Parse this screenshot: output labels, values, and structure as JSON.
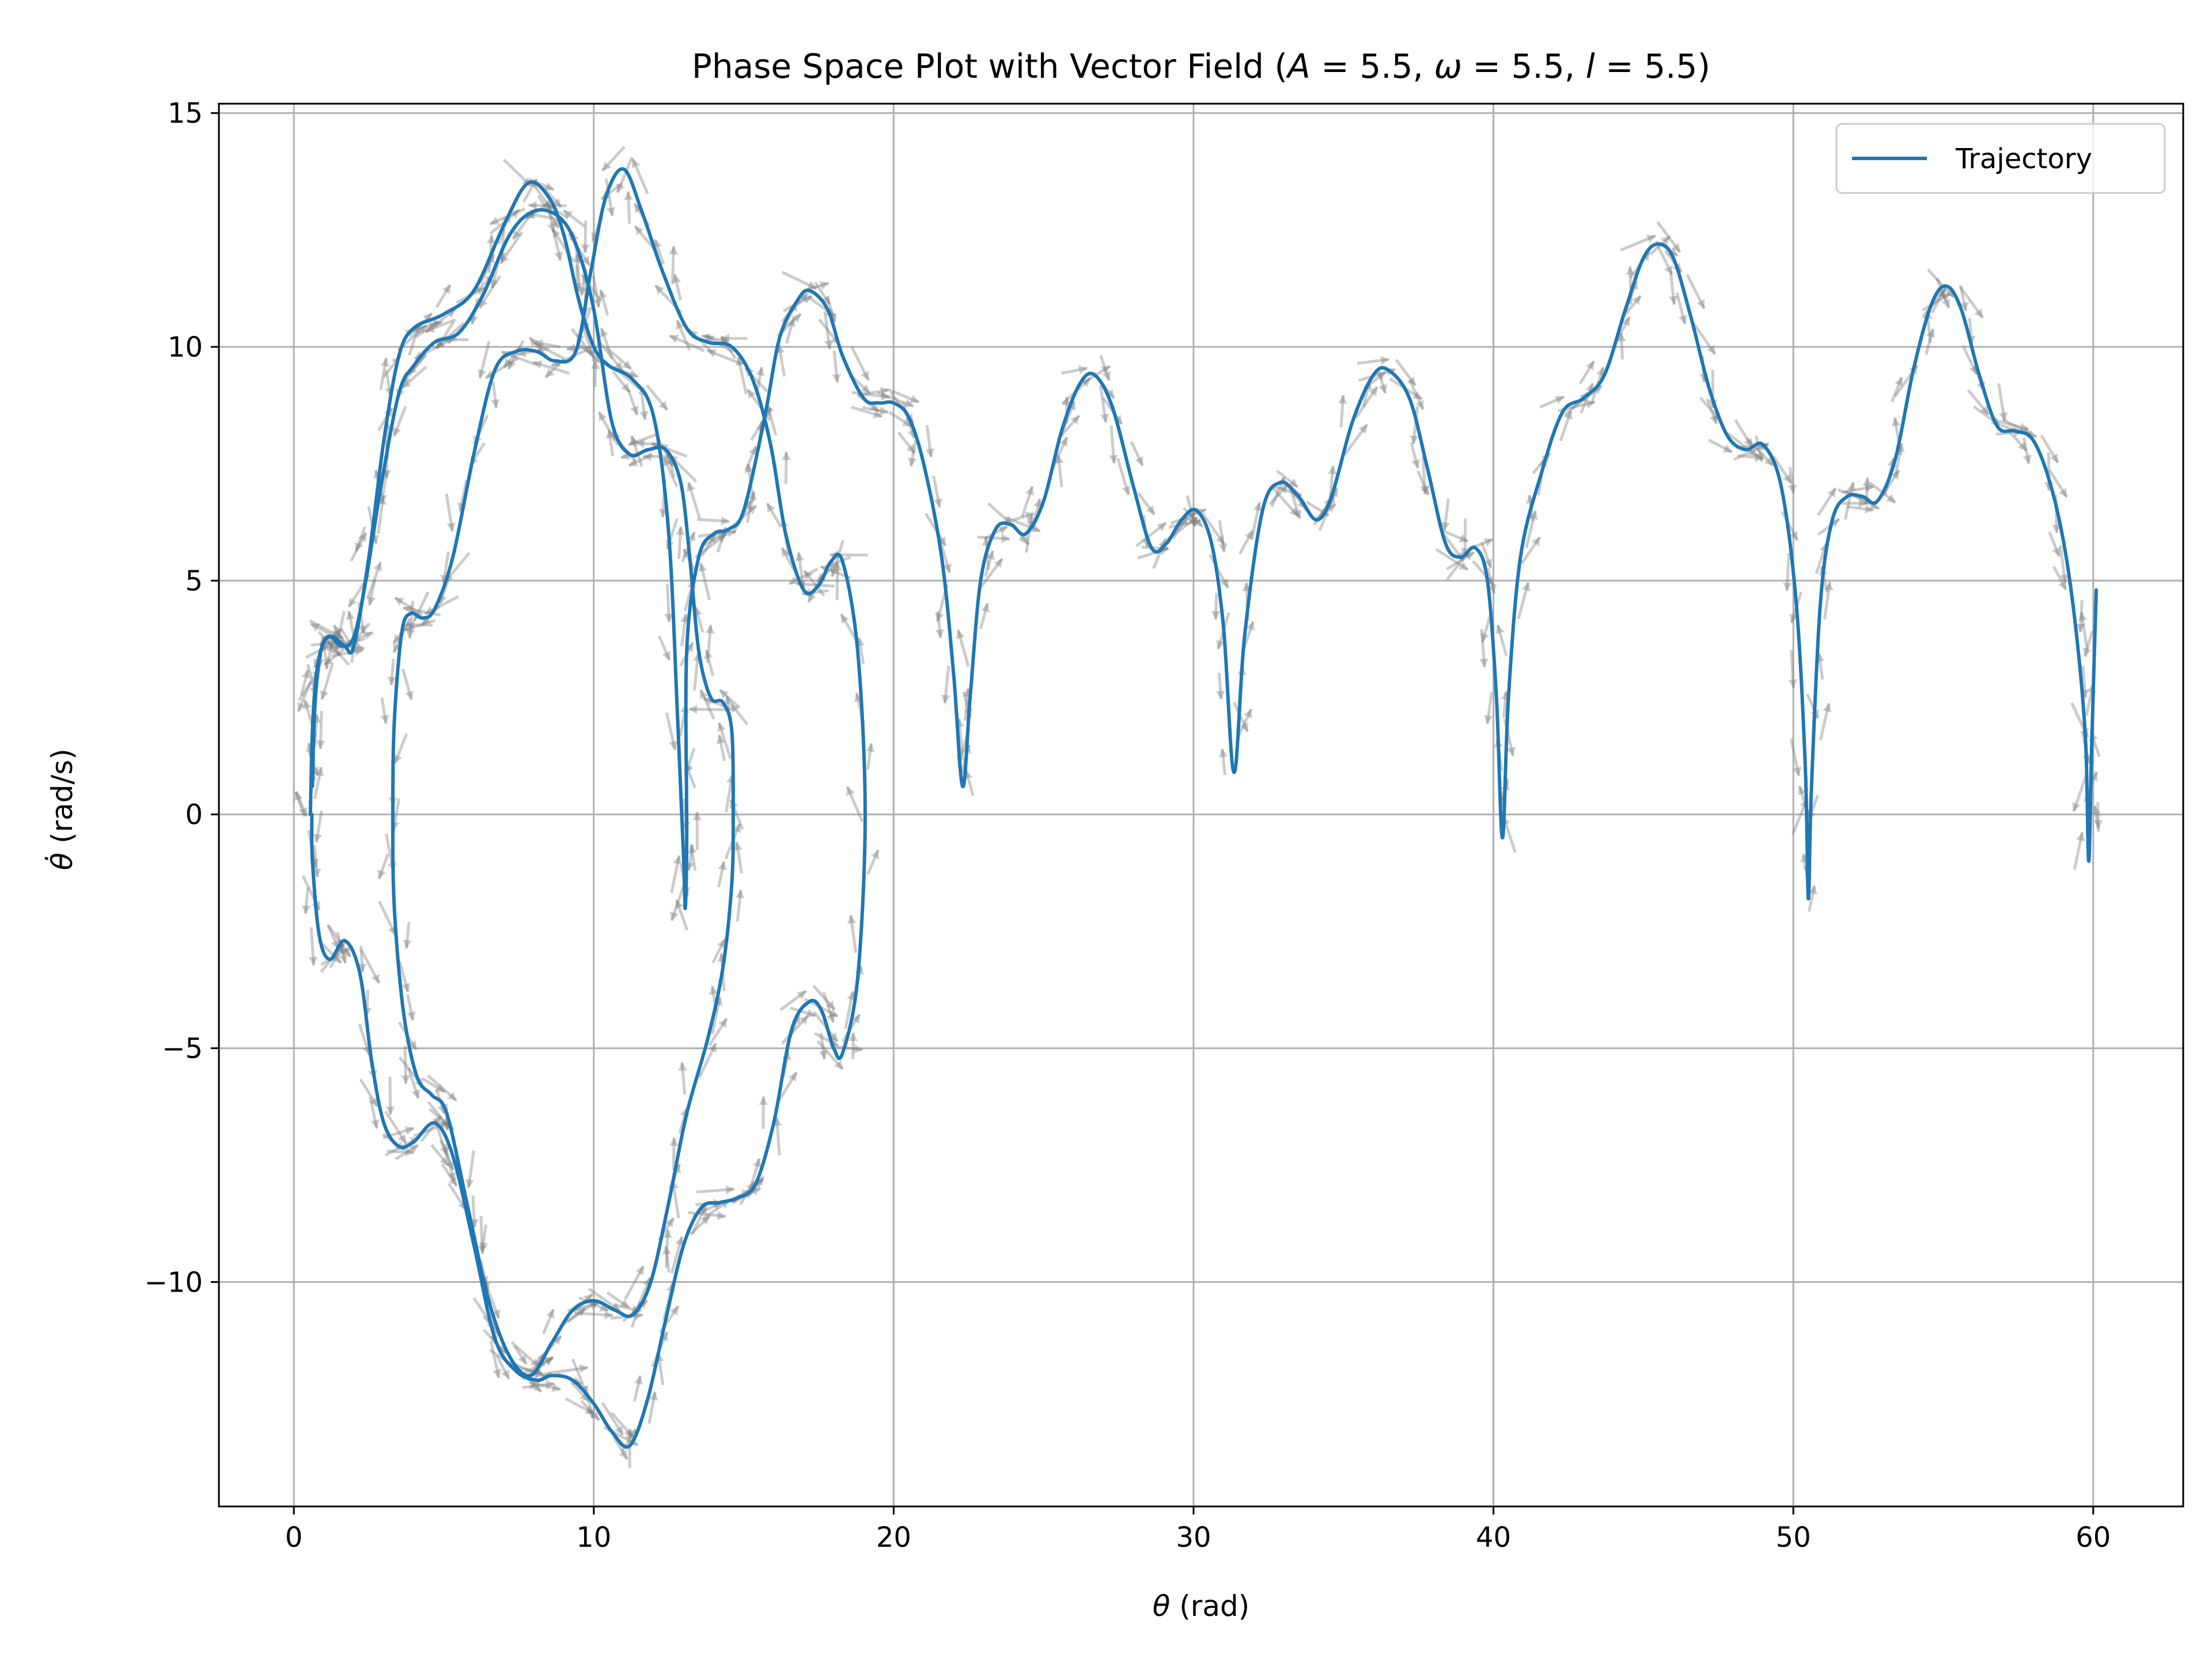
{
  "chart_data": {
    "type": "line",
    "title_parts": {
      "prefix": "Phase Space Plot with Vector Field (",
      "A_sym": "A",
      "A_val": " = 5.5, ",
      "w_sym": "ω",
      "w_val": " = 5.5, ",
      "l_sym": "l",
      "l_val": " = 5.5)"
    },
    "xlabel": {
      "sym": "θ",
      "text": " (rad)"
    },
    "ylabel": {
      "sym": "θ̇",
      "text": " (rad/s)"
    },
    "xlim": [
      -2.5,
      63.0
    ],
    "ylim": [
      -14.8,
      15.2
    ],
    "x_ticks": [
      0,
      10,
      20,
      30,
      40,
      50,
      60
    ],
    "x_tick_labels": [
      "0",
      "10",
      "20",
      "30",
      "40",
      "50",
      "60"
    ],
    "y_ticks": [
      15,
      10,
      5,
      0,
      -5,
      -10
    ],
    "y_tick_labels": [
      "15",
      "10",
      "5",
      "0",
      "−5",
      "−10"
    ],
    "grid": true,
    "legend": {
      "placement": "top-right",
      "entries": [
        "Trajectory"
      ]
    },
    "colors": {
      "trajectory": "#1f77b4",
      "quiver": "#808080",
      "grid": "#b0b0b0"
    },
    "series": [
      {
        "name": "Trajectory",
        "points": [
          [
            0.55,
            0.0
          ],
          [
            0.62,
            1.8
          ],
          [
            0.75,
            3.0
          ],
          [
            1.0,
            3.7
          ],
          [
            1.3,
            3.8
          ],
          [
            1.7,
            3.6
          ],
          [
            2.0,
            3.6
          ],
          [
            2.5,
            5.5
          ],
          [
            3.0,
            8.0
          ],
          [
            3.5,
            9.8
          ],
          [
            4.0,
            10.4
          ],
          [
            5.0,
            10.7
          ],
          [
            6.0,
            11.2
          ],
          [
            7.0,
            12.6
          ],
          [
            7.8,
            13.5
          ],
          [
            8.5,
            13.2
          ],
          [
            9.0,
            12.4
          ],
          [
            9.5,
            11.0
          ],
          [
            10.0,
            10.0
          ],
          [
            10.5,
            9.6
          ],
          [
            11.3,
            9.3
          ],
          [
            12.0,
            8.5
          ],
          [
            12.5,
            6.0
          ],
          [
            12.8,
            2.0
          ],
          [
            13.0,
            -1.0
          ],
          [
            13.05,
            -2.0
          ],
          [
            13.1,
            -0.5
          ],
          [
            13.1,
            3.5
          ],
          [
            13.5,
            5.5
          ],
          [
            14.0,
            6.0
          ],
          [
            14.5,
            6.1
          ],
          [
            15.0,
            6.5
          ],
          [
            15.7,
            8.5
          ],
          [
            16.2,
            10.2
          ],
          [
            16.8,
            11.0
          ],
          [
            17.2,
            11.2
          ],
          [
            17.8,
            10.8
          ],
          [
            18.3,
            9.8
          ],
          [
            19.0,
            8.9
          ],
          [
            19.5,
            8.8
          ],
          [
            20.0,
            8.8
          ],
          [
            20.5,
            8.5
          ],
          [
            21.0,
            7.5
          ],
          [
            21.6,
            5.5
          ],
          [
            22.0,
            3.0
          ],
          [
            22.3,
            0.6
          ],
          [
            22.55,
            2.5
          ],
          [
            22.9,
            5.0
          ],
          [
            23.4,
            6.1
          ],
          [
            23.9,
            6.2
          ],
          [
            24.4,
            6.0
          ],
          [
            25.0,
            6.7
          ],
          [
            25.6,
            8.2
          ],
          [
            26.2,
            9.2
          ],
          [
            26.7,
            9.4
          ],
          [
            27.3,
            8.7
          ],
          [
            28.0,
            7.0
          ],
          [
            28.6,
            5.7
          ],
          [
            29.1,
            5.8
          ],
          [
            29.6,
            6.3
          ],
          [
            30.1,
            6.5
          ],
          [
            30.6,
            5.8
          ],
          [
            31.0,
            4.0
          ],
          [
            31.35,
            0.9
          ],
          [
            31.7,
            3.8
          ],
          [
            32.3,
            6.5
          ],
          [
            32.9,
            7.1
          ],
          [
            33.5,
            6.8
          ],
          [
            34.1,
            6.3
          ],
          [
            34.6,
            6.8
          ],
          [
            35.3,
            8.4
          ],
          [
            36.0,
            9.4
          ],
          [
            36.5,
            9.5
          ],
          [
            37.2,
            8.9
          ],
          [
            37.8,
            7.4
          ],
          [
            38.4,
            5.8
          ],
          [
            38.9,
            5.5
          ],
          [
            39.4,
            5.7
          ],
          [
            39.8,
            5.0
          ],
          [
            40.1,
            2.5
          ],
          [
            40.3,
            -0.5
          ],
          [
            40.5,
            2.5
          ],
          [
            40.9,
            5.5
          ],
          [
            41.6,
            7.3
          ],
          [
            42.3,
            8.6
          ],
          [
            43.0,
            8.9
          ],
          [
            43.7,
            9.4
          ],
          [
            44.4,
            10.8
          ],
          [
            45.0,
            11.9
          ],
          [
            45.5,
            12.2
          ],
          [
            46.0,
            11.9
          ],
          [
            46.6,
            10.6
          ],
          [
            47.2,
            9.1
          ],
          [
            47.8,
            8.1
          ],
          [
            48.4,
            7.8
          ],
          [
            49.0,
            7.9
          ],
          [
            49.6,
            7.0
          ],
          [
            50.1,
            4.5
          ],
          [
            50.4,
            1.0
          ],
          [
            50.5,
            -1.8
          ],
          [
            50.6,
            0.5
          ],
          [
            50.9,
            4.5
          ],
          [
            51.3,
            6.3
          ],
          [
            51.8,
            6.8
          ],
          [
            52.3,
            6.8
          ],
          [
            52.8,
            6.7
          ],
          [
            53.4,
            7.6
          ],
          [
            54.0,
            9.5
          ],
          [
            54.6,
            10.9
          ],
          [
            55.1,
            11.3
          ],
          [
            55.6,
            10.8
          ],
          [
            56.2,
            9.4
          ],
          [
            56.8,
            8.3
          ],
          [
            57.4,
            8.2
          ],
          [
            58.0,
            8.0
          ],
          [
            58.6,
            7.0
          ],
          [
            59.1,
            5.5
          ],
          [
            59.5,
            3.5
          ],
          [
            59.75,
            1.5
          ],
          [
            59.85,
            -1.0
          ],
          [
            59.95,
            1.5
          ],
          [
            60.1,
            4.8
          ]
        ]
      },
      {
        "name": "Trajectory",
        "points": [
          [
            0.6,
            0.0
          ],
          [
            0.62,
            -1.0
          ],
          [
            0.85,
            -2.6
          ],
          [
            1.2,
            -3.1
          ],
          [
            1.7,
            -2.7
          ],
          [
            2.2,
            -3.4
          ],
          [
            2.6,
            -5.3
          ],
          [
            3.0,
            -6.6
          ],
          [
            3.5,
            -7.1
          ],
          [
            4.0,
            -7.0
          ],
          [
            4.7,
            -6.6
          ],
          [
            5.3,
            -7.3
          ],
          [
            6.0,
            -9.2
          ],
          [
            6.7,
            -11.2
          ],
          [
            7.4,
            -11.9
          ],
          [
            8.1,
            -12.1
          ],
          [
            8.6,
            -12.0
          ],
          [
            9.3,
            -12.1
          ],
          [
            10.0,
            -12.6
          ],
          [
            10.6,
            -13.2
          ],
          [
            11.2,
            -13.5
          ],
          [
            11.8,
            -12.5
          ],
          [
            12.4,
            -10.8
          ],
          [
            13.0,
            -9.2
          ],
          [
            13.6,
            -8.4
          ],
          [
            14.2,
            -8.3
          ],
          [
            14.8,
            -8.2
          ],
          [
            15.4,
            -7.9
          ],
          [
            16.0,
            -6.6
          ],
          [
            16.6,
            -4.6
          ],
          [
            17.2,
            -4.0
          ],
          [
            17.6,
            -4.2
          ],
          [
            18.0,
            -5.0
          ],
          [
            18.3,
            -5.1
          ],
          [
            18.8,
            -3.5
          ],
          [
            19.05,
            0.0
          ],
          [
            18.8,
            3.5
          ],
          [
            18.3,
            5.4
          ],
          [
            17.9,
            5.4
          ],
          [
            17.5,
            4.9
          ],
          [
            17.0,
            4.8
          ],
          [
            16.4,
            6.0
          ],
          [
            15.9,
            7.9
          ],
          [
            15.3,
            9.3
          ],
          [
            14.6,
            10.0
          ],
          [
            13.8,
            10.1
          ],
          [
            13.1,
            10.4
          ],
          [
            12.3,
            11.6
          ],
          [
            11.6,
            12.9
          ],
          [
            11.0,
            13.8
          ],
          [
            10.4,
            13.2
          ],
          [
            9.9,
            11.6
          ],
          [
            9.4,
            9.9
          ],
          [
            8.7,
            9.7
          ],
          [
            8.1,
            9.9
          ],
          [
            7.4,
            9.9
          ],
          [
            6.7,
            9.5
          ],
          [
            6.0,
            7.7
          ],
          [
            5.3,
            5.5
          ],
          [
            4.7,
            4.4
          ],
          [
            4.3,
            4.2
          ],
          [
            3.9,
            4.3
          ],
          [
            3.6,
            3.9
          ],
          [
            3.35,
            2.0
          ],
          [
            3.3,
            0.0
          ],
          [
            3.35,
            -2.0
          ],
          [
            3.65,
            -4.2
          ],
          [
            4.1,
            -5.6
          ],
          [
            4.6,
            -6.0
          ],
          [
            5.1,
            -6.4
          ],
          [
            5.8,
            -8.4
          ],
          [
            6.5,
            -10.4
          ],
          [
            7.2,
            -11.6
          ],
          [
            7.9,
            -12.0
          ],
          [
            8.6,
            -11.3
          ],
          [
            9.3,
            -10.6
          ],
          [
            10.0,
            -10.4
          ],
          [
            10.7,
            -10.6
          ],
          [
            11.3,
            -10.7
          ],
          [
            11.9,
            -10.0
          ],
          [
            12.5,
            -8.3
          ],
          [
            13.1,
            -6.4
          ],
          [
            13.8,
            -4.8
          ],
          [
            14.3,
            -3.3
          ],
          [
            14.6,
            -1.5
          ],
          [
            14.65,
            0.0
          ],
          [
            14.6,
            1.8
          ],
          [
            14.3,
            2.4
          ],
          [
            13.9,
            2.5
          ],
          [
            13.5,
            3.5
          ],
          [
            13.2,
            5.5
          ],
          [
            12.9,
            7.1
          ],
          [
            12.4,
            7.8
          ],
          [
            11.8,
            7.8
          ],
          [
            11.2,
            7.7
          ],
          [
            10.6,
            8.4
          ],
          [
            10.0,
            10.8
          ],
          [
            9.4,
            12.2
          ],
          [
            8.8,
            12.8
          ],
          [
            8.0,
            12.9
          ],
          [
            7.2,
            12.4
          ],
          [
            6.3,
            11.1
          ],
          [
            5.5,
            10.3
          ],
          [
            4.7,
            10.1
          ],
          [
            4.0,
            9.6
          ],
          [
            3.5,
            9.0
          ],
          [
            2.9,
            7.0
          ],
          [
            2.4,
            5.0
          ],
          [
            2.0,
            3.8
          ],
          [
            1.6,
            3.6
          ],
          [
            1.2,
            3.8
          ],
          [
            0.9,
            3.5
          ],
          [
            0.7,
            2.3
          ],
          [
            0.62,
            0.6
          ]
        ]
      }
    ]
  }
}
